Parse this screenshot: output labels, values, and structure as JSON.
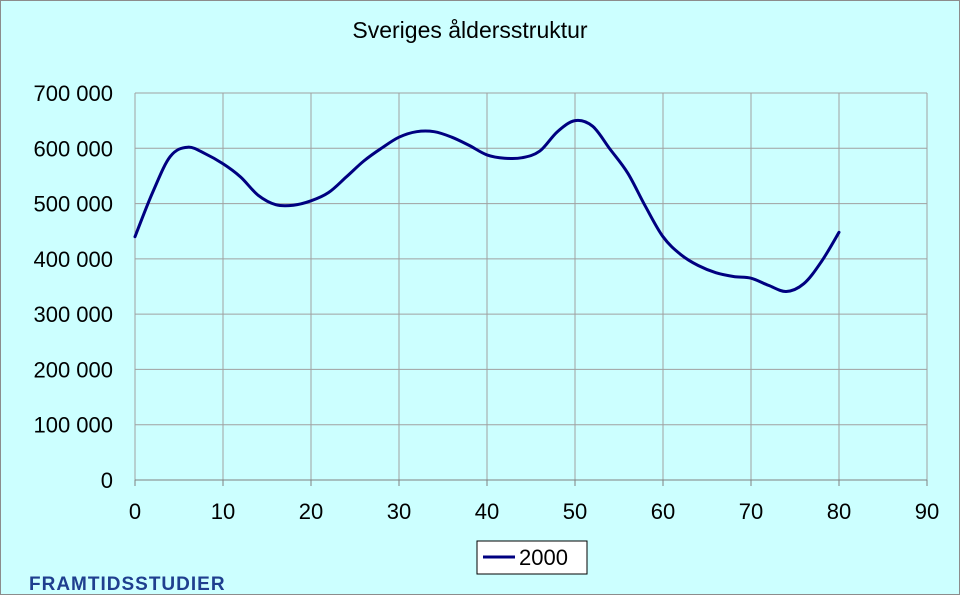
{
  "brand": {
    "logo_text": "FRAMTIDSSTUDIER",
    "color": "#1f3f8f"
  },
  "chart_data": {
    "type": "line",
    "title": "Sveriges åldersstruktur",
    "xlabel": "",
    "ylabel": "",
    "xlim": [
      0,
      90
    ],
    "ylim": [
      0,
      700000
    ],
    "x_ticks": [
      0,
      10,
      20,
      30,
      40,
      50,
      60,
      70,
      80,
      90
    ],
    "x_tick_labels": [
      "0",
      "10",
      "20",
      "30",
      "40",
      "50",
      "60",
      "70",
      "80",
      "90"
    ],
    "y_ticks": [
      0,
      100000,
      200000,
      300000,
      400000,
      500000,
      600000,
      700000
    ],
    "y_tick_labels": [
      "0",
      "100 000",
      "200 000",
      "300 000",
      "400 000",
      "500 000",
      "600 000",
      "700 000"
    ],
    "grid": {
      "vertical": true,
      "horizontal": true
    },
    "legend": {
      "placement": "bottom-center"
    },
    "background_color": "#ccffff",
    "grid_color": "#a0a0a0",
    "series": [
      {
        "name": "2000",
        "color": "#000080",
        "x": [
          0,
          2,
          4,
          6,
          8,
          10,
          12,
          14,
          16,
          18,
          20,
          22,
          24,
          26,
          28,
          30,
          32,
          34,
          36,
          38,
          40,
          42,
          44,
          46,
          48,
          50,
          52,
          54,
          56,
          58,
          60,
          62,
          64,
          66,
          68,
          70,
          72,
          74,
          76,
          78,
          80
        ],
        "values": [
          440000,
          520000,
          585000,
          602000,
          590000,
          572000,
          548000,
          515000,
          498000,
          497000,
          505000,
          520000,
          548000,
          577000,
          600000,
          620000,
          630000,
          630000,
          620000,
          605000,
          588000,
          582000,
          583000,
          595000,
          630000,
          650000,
          640000,
          598000,
          555000,
          495000,
          440000,
          408000,
          388000,
          375000,
          368000,
          365000,
          352000,
          341000,
          355000,
          395000,
          448000
        ]
      }
    ]
  }
}
